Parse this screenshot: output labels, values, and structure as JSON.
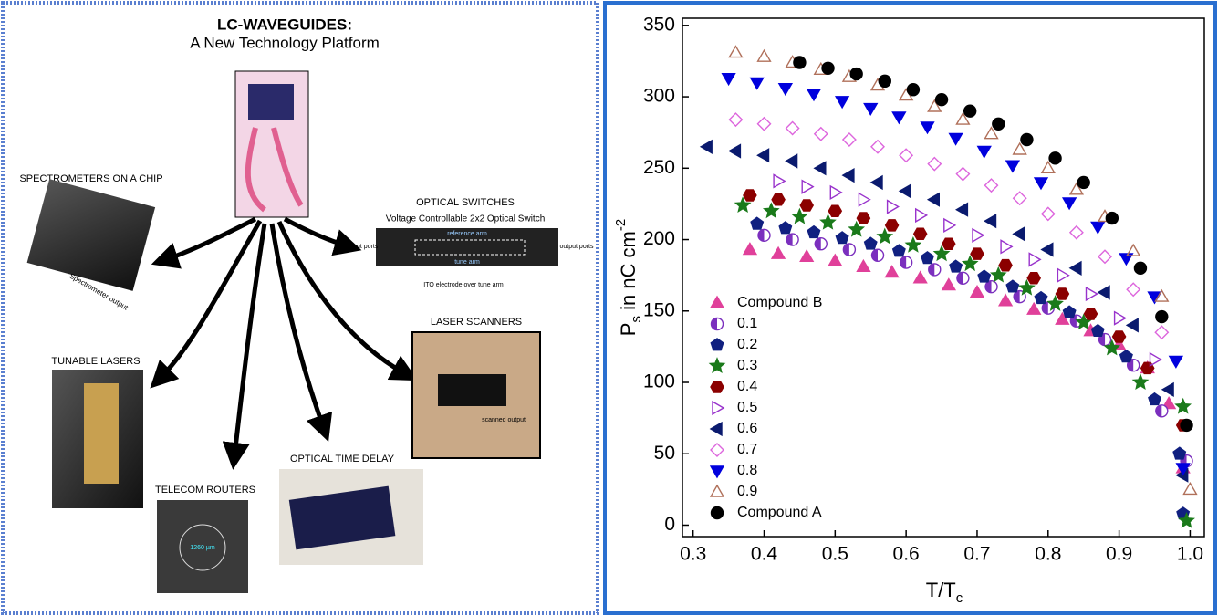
{
  "diagram": {
    "title": "LC-WAVEGUIDES:",
    "subtitle": "A New Technology Platform",
    "nodes": [
      {
        "label": "SPECTROMETERS ON A CHIP",
        "note": "Spectrometer output"
      },
      {
        "label": "OPTICAL SWITCHES",
        "note": "Voltage Controllable 2x2 Optical Switch",
        "parts": [
          "reference arm",
          "tune arm",
          "input ports",
          "output ports",
          "ITO electrode over tune arm"
        ]
      },
      {
        "label": "LASER SCANNERS",
        "note": "scanned output"
      },
      {
        "label": "TUNABLE LASERS"
      },
      {
        "label": "TELECOM ROUTERS",
        "note": "1260 µm"
      },
      {
        "label": "OPTICAL TIME DELAY"
      }
    ]
  },
  "chart_data": {
    "type": "scatter",
    "xlabel": {
      "main": "T/T",
      "sub": "c"
    },
    "ylabel": {
      "main": "P",
      "sub": "s",
      "rest": " in nC cm",
      "sup": "-2"
    },
    "xlim": [
      0.285,
      1.02
    ],
    "ylim": [
      -8,
      355
    ],
    "xticks": [
      0.3,
      0.4,
      0.5,
      0.6,
      0.7,
      0.8,
      0.9,
      {
        "value": 1,
        "label": "1.0"
      }
    ],
    "yticks": [
      0,
      50,
      100,
      150,
      200,
      250,
      300,
      350
    ],
    "legend": "lower left",
    "series": [
      {
        "name": "Compound B",
        "color": "#e0409a",
        "marker": "triangle-up",
        "filled": true,
        "x": [
          0.38,
          0.42,
          0.46,
          0.5,
          0.54,
          0.58,
          0.62,
          0.66,
          0.7,
          0.74,
          0.78,
          0.82,
          0.86,
          0.9,
          0.94,
          0.97,
          0.99
        ],
        "values": [
          193,
          190,
          188,
          185,
          181,
          177,
          173,
          168,
          163,
          157,
          151,
          144,
          136,
          126,
          110,
          85,
          40
        ]
      },
      {
        "name": "0.1",
        "color": "#7b2fbe",
        "marker": "half-circle",
        "filled": true,
        "x": [
          0.4,
          0.44,
          0.48,
          0.52,
          0.56,
          0.6,
          0.64,
          0.68,
          0.72,
          0.76,
          0.8,
          0.84,
          0.88,
          0.92,
          0.96,
          0.995
        ],
        "values": [
          203,
          200,
          197,
          193,
          189,
          184,
          179,
          173,
          167,
          160,
          152,
          143,
          130,
          112,
          80,
          45
        ]
      },
      {
        "name": "0.2",
        "color": "#102080",
        "marker": "pentagon",
        "filled": true,
        "x": [
          0.39,
          0.43,
          0.47,
          0.51,
          0.55,
          0.59,
          0.63,
          0.67,
          0.71,
          0.75,
          0.79,
          0.83,
          0.87,
          0.91,
          0.95,
          0.985,
          0.99
        ],
        "values": [
          211,
          208,
          205,
          201,
          197,
          192,
          187,
          181,
          174,
          167,
          159,
          149,
          136,
          118,
          88,
          50,
          8
        ]
      },
      {
        "name": "0.3",
        "color": "#1a7a1a",
        "marker": "star",
        "filled": true,
        "x": [
          0.37,
          0.41,
          0.45,
          0.49,
          0.53,
          0.57,
          0.61,
          0.65,
          0.69,
          0.73,
          0.77,
          0.81,
          0.85,
          0.89,
          0.93,
          0.99,
          0.995
        ],
        "values": [
          224,
          220,
          216,
          212,
          207,
          202,
          196,
          190,
          183,
          175,
          166,
          155,
          142,
          124,
          100,
          83,
          3
        ]
      },
      {
        "name": "0.4",
        "color": "#8b0000",
        "marker": "hexagon",
        "filled": true,
        "x": [
          0.38,
          0.42,
          0.46,
          0.5,
          0.54,
          0.58,
          0.62,
          0.66,
          0.7,
          0.74,
          0.78,
          0.82,
          0.86,
          0.9,
          0.94,
          0.99
        ],
        "values": [
          231,
          228,
          224,
          220,
          215,
          210,
          204,
          197,
          190,
          182,
          173,
          162,
          148,
          132,
          110,
          70
        ]
      },
      {
        "name": "0.5",
        "color": "#9933cc",
        "marker": "triangle-right",
        "filled": false,
        "x": [
          0.42,
          0.46,
          0.5,
          0.54,
          0.58,
          0.62,
          0.66,
          0.7,
          0.74,
          0.78,
          0.82,
          0.86,
          0.9,
          0.95
        ],
        "values": [
          241,
          237,
          233,
          228,
          223,
          217,
          210,
          203,
          195,
          186,
          175,
          162,
          145,
          116
        ]
      },
      {
        "name": "0.6",
        "color": "#0a1a6e",
        "marker": "triangle-left",
        "filled": true,
        "x": [
          0.32,
          0.36,
          0.4,
          0.44,
          0.48,
          0.52,
          0.56,
          0.6,
          0.64,
          0.68,
          0.72,
          0.76,
          0.8,
          0.84,
          0.88,
          0.92,
          0.97,
          0.99
        ],
        "values": [
          265,
          262,
          259,
          255,
          250,
          245,
          240,
          234,
          228,
          221,
          213,
          204,
          193,
          180,
          163,
          140,
          95,
          35
        ]
      },
      {
        "name": "0.7",
        "color": "#dd66dd",
        "marker": "diamond",
        "filled": false,
        "x": [
          0.36,
          0.4,
          0.44,
          0.48,
          0.52,
          0.56,
          0.6,
          0.64,
          0.68,
          0.72,
          0.76,
          0.8,
          0.84,
          0.88,
          0.92,
          0.96
        ],
        "values": [
          284,
          281,
          278,
          274,
          270,
          265,
          259,
          253,
          246,
          238,
          229,
          218,
          205,
          188,
          165,
          135
        ]
      },
      {
        "name": "0.8",
        "color": "#0000dd",
        "marker": "triangle-down",
        "filled": true,
        "x": [
          0.35,
          0.39,
          0.43,
          0.47,
          0.51,
          0.55,
          0.59,
          0.63,
          0.67,
          0.71,
          0.75,
          0.79,
          0.83,
          0.87,
          0.91,
          0.95,
          0.98,
          0.99
        ],
        "values": [
          313,
          310,
          306,
          302,
          297,
          292,
          286,
          279,
          271,
          262,
          252,
          240,
          226,
          209,
          187,
          160,
          115,
          40
        ]
      },
      {
        "name": "0.9",
        "color": "#b0705a",
        "marker": "triangle-up",
        "filled": false,
        "x": [
          0.36,
          0.4,
          0.44,
          0.48,
          0.52,
          0.56,
          0.6,
          0.64,
          0.68,
          0.72,
          0.76,
          0.8,
          0.84,
          0.88,
          0.92,
          0.96,
          1.0
        ],
        "values": [
          331,
          328,
          324,
          319,
          314,
          308,
          301,
          293,
          284,
          274,
          263,
          250,
          235,
          216,
          192,
          160,
          25
        ]
      },
      {
        "name": "Compound A",
        "color": "#000000",
        "marker": "circle",
        "filled": true,
        "x": [
          0.45,
          0.49,
          0.53,
          0.57,
          0.61,
          0.65,
          0.69,
          0.73,
          0.77,
          0.81,
          0.85,
          0.89,
          0.93,
          0.96,
          0.995
        ],
        "values": [
          324,
          320,
          316,
          311,
          305,
          298,
          290,
          281,
          270,
          257,
          240,
          215,
          180,
          146,
          70
        ]
      }
    ]
  }
}
